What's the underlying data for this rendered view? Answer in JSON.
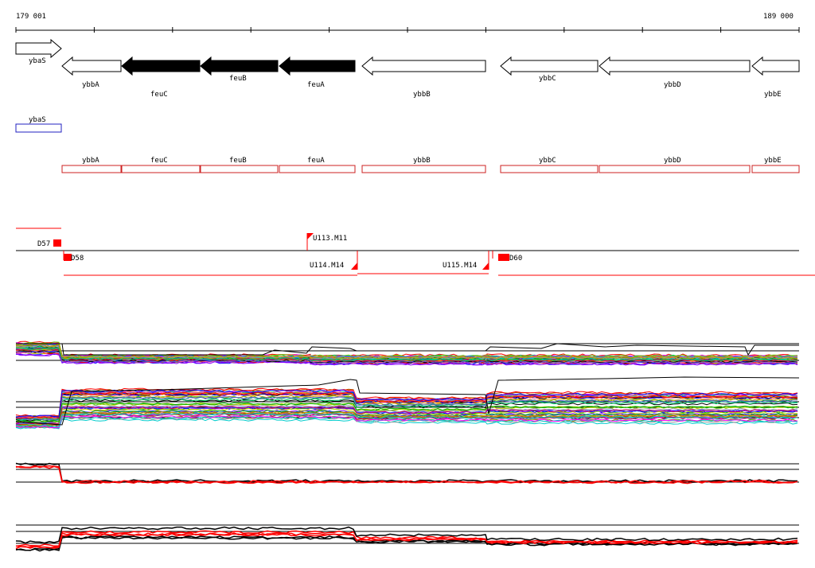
{
  "ruler": {
    "start_label": "179 001",
    "end_label": "189 000"
  },
  "genes_forward": [
    {
      "name": "ybaS",
      "filled": false
    }
  ],
  "genes_reverse": [
    {
      "name": "ybbA",
      "filled": false
    },
    {
      "name": "feuC",
      "filled": true
    },
    {
      "name": "feuB",
      "filled": true
    },
    {
      "name": "feuA",
      "filled": true
    },
    {
      "name": "ybbB",
      "filled": false
    },
    {
      "name": "ybbC",
      "filled": false
    },
    {
      "name": "ybbD",
      "filled": false
    },
    {
      "name": "ybbE",
      "filled": false
    }
  ],
  "box_track_forward": [
    {
      "name": "ybaS",
      "color": "#2020c0"
    }
  ],
  "box_track_reverse": [
    {
      "name": "ybbA",
      "color": "#cc2020"
    },
    {
      "name": "feuC",
      "color": "#cc2020"
    },
    {
      "name": "feuB",
      "color": "#cc2020"
    },
    {
      "name": "feuA",
      "color": "#cc2020"
    },
    {
      "name": "ybbB",
      "color": "#cc2020"
    },
    {
      "name": "ybbC",
      "color": "#cc2020"
    },
    {
      "name": "ybbD",
      "color": "#cc2020"
    },
    {
      "name": "ybbE",
      "color": "#cc2020"
    }
  ],
  "markers": [
    {
      "label": "D57"
    },
    {
      "label": "U113.M11"
    },
    {
      "label": "D58"
    },
    {
      "label": "U114.M14"
    },
    {
      "label": "U115.M14"
    },
    {
      "label": "D60"
    }
  ],
  "colors": {
    "accent": "#ff0000",
    "axis": "#000000"
  }
}
